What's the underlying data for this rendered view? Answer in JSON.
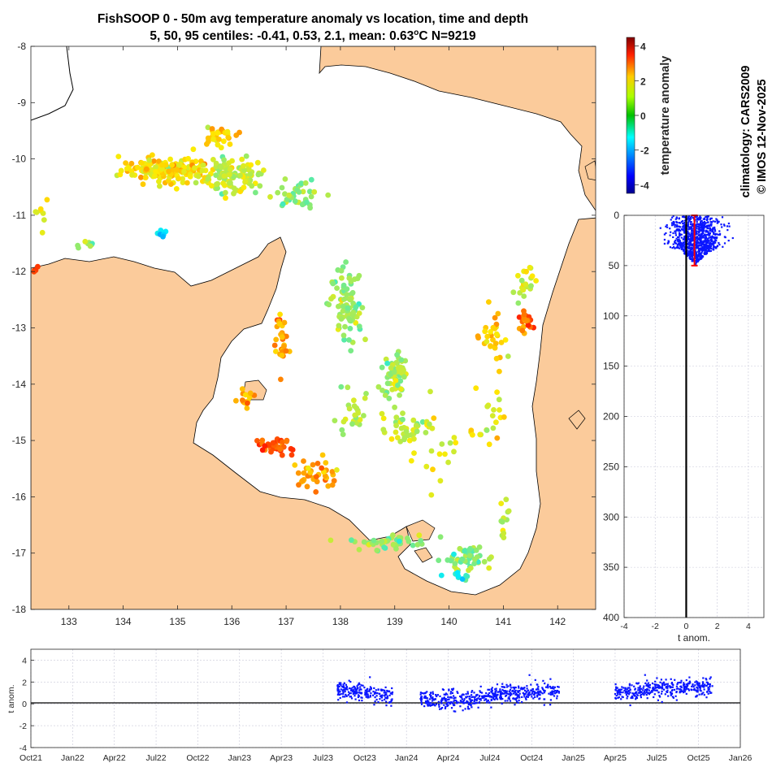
{
  "title_line1": "FishSOOP 0 - 50m avg temperature anomaly vs location, time and depth",
  "title_line2_prefix": "5, 50, 95 centiles: -0.41, 0.53, 2.1, mean: 0.63",
  "title_line2_sup": "o",
  "title_line2_suffix": "C N=9219",
  "side_text": {
    "climatology": "climatology: CARS2009",
    "copyright": "© IMOS 12-Nov-2025"
  },
  "colors": {
    "land": "#fbcb9b",
    "points_blue": "#0a16ff",
    "median_bar": "#ff0000",
    "coast": "#000000"
  },
  "chart_data": [
    {
      "type": "scatter",
      "name": "map",
      "xlim": [
        132.3,
        142.7
      ],
      "ylim": [
        -18,
        -8
      ],
      "x_ticks": [
        "133",
        "134",
        "135",
        "136",
        "137",
        "138",
        "139",
        "140",
        "141",
        "142"
      ],
      "x_tick_values": [
        133,
        134,
        135,
        136,
        137,
        138,
        139,
        140,
        141,
        142
      ],
      "y_ticks": [
        "-8",
        "-9",
        "-10",
        "-11",
        "-12",
        "-13",
        "-14",
        "-15",
        "-16",
        "-17",
        "-18"
      ],
      "y_tick_values": [
        -8,
        -9,
        -10,
        -11,
        -12,
        -13,
        -14,
        -15,
        -16,
        -17,
        -18
      ],
      "colorbar": {
        "label": "temperature anomaly",
        "range": [
          -4.5,
          4.5
        ],
        "ticks": [
          "-4",
          "-2",
          "0",
          "2",
          "4"
        ],
        "tick_values": [
          -4,
          -2,
          0,
          2,
          4
        ]
      },
      "clusters": [
        {
          "lon": 134.8,
          "lat": -10.2,
          "anom": 1.2,
          "n": 160,
          "slon": 0.7,
          "slat": 0.18
        },
        {
          "lon": 136.0,
          "lat": -10.3,
          "anom": 0.6,
          "n": 110,
          "slon": 0.5,
          "slat": 0.25
        },
        {
          "lon": 135.7,
          "lat": -9.6,
          "anom": 1.4,
          "n": 30,
          "slon": 0.3,
          "slat": 0.15
        },
        {
          "lon": 137.2,
          "lat": -10.6,
          "anom": 0.2,
          "n": 40,
          "slon": 0.4,
          "slat": 0.2
        },
        {
          "lon": 138.1,
          "lat": -12.6,
          "anom": 0.2,
          "n": 90,
          "slon": 0.25,
          "slat": 0.6
        },
        {
          "lon": 139.0,
          "lat": -13.8,
          "anom": 0.3,
          "n": 70,
          "slon": 0.2,
          "slat": 0.35
        },
        {
          "lon": 139.2,
          "lat": -14.8,
          "anom": 0.4,
          "n": 40,
          "slon": 0.35,
          "slat": 0.2
        },
        {
          "lon": 136.8,
          "lat": -15.1,
          "anom": 2.6,
          "n": 40,
          "slon": 0.25,
          "slat": 0.12
        },
        {
          "lon": 137.5,
          "lat": -15.6,
          "anom": 1.8,
          "n": 40,
          "slon": 0.35,
          "slat": 0.25
        },
        {
          "lon": 138.9,
          "lat": -16.8,
          "anom": 0.1,
          "n": 45,
          "slon": 0.6,
          "slat": 0.12
        },
        {
          "lon": 140.4,
          "lat": -17.1,
          "anom": 0.1,
          "n": 50,
          "slon": 0.35,
          "slat": 0.2
        },
        {
          "lon": 140.2,
          "lat": -17.4,
          "anom": -0.8,
          "n": 8,
          "slon": 0.15,
          "slat": 0.05
        },
        {
          "lon": 141.4,
          "lat": -12.9,
          "anom": 2.4,
          "n": 25,
          "slon": 0.1,
          "slat": 0.15
        },
        {
          "lon": 140.8,
          "lat": -13.2,
          "anom": 1.5,
          "n": 30,
          "slon": 0.2,
          "slat": 0.4
        },
        {
          "lon": 141.4,
          "lat": -12.2,
          "anom": 0.6,
          "n": 20,
          "slon": 0.15,
          "slat": 0.3
        },
        {
          "lon": 136.9,
          "lat": -13.2,
          "anom": 1.8,
          "n": 30,
          "slon": 0.1,
          "slat": 0.5
        },
        {
          "lon": 136.3,
          "lat": -14.3,
          "anom": 1.6,
          "n": 15,
          "slon": 0.15,
          "slat": 0.15
        },
        {
          "lon": 133.4,
          "lat": -11.5,
          "anom": 0.4,
          "n": 8,
          "slon": 0.15,
          "slat": 0.1
        },
        {
          "lon": 132.5,
          "lat": -11.0,
          "anom": 0.9,
          "n": 8,
          "slon": 0.1,
          "slat": 0.2
        },
        {
          "lon": 132.4,
          "lat": -12.0,
          "anom": 2.5,
          "n": 4,
          "slon": 0.05,
          "slat": 0.05
        },
        {
          "lon": 139.8,
          "lat": -15.2,
          "anom": 0.8,
          "n": 20,
          "slon": 0.6,
          "slat": 0.6
        },
        {
          "lon": 138.3,
          "lat": -14.6,
          "anom": 0.5,
          "n": 25,
          "slon": 0.3,
          "slat": 0.4
        },
        {
          "lon": 140.7,
          "lat": -14.6,
          "anom": 0.9,
          "n": 20,
          "slon": 0.2,
          "slat": 0.4
        },
        {
          "lon": 141.0,
          "lat": -16.4,
          "anom": 0.7,
          "n": 12,
          "slon": 0.1,
          "slat": 0.4
        },
        {
          "lon": 134.7,
          "lat": -11.3,
          "anom": -1.2,
          "n": 6,
          "slon": 0.1,
          "slat": 0.05
        }
      ]
    },
    {
      "type": "scatter",
      "name": "depth-profile",
      "xlabel": "t anom.",
      "xlim": [
        -4,
        5
      ],
      "ylim": [
        0,
        400
      ],
      "x_ticks": [
        "-4",
        "-2",
        "0",
        "2",
        "4"
      ],
      "x_tick_values": [
        -4,
        -2,
        0,
        2,
        4
      ],
      "y_ticks": [
        "0",
        "50",
        "100",
        "150",
        "200",
        "250",
        "300",
        "350",
        "400"
      ],
      "y_tick_values": [
        0,
        50,
        100,
        150,
        200,
        250,
        300,
        350,
        400
      ],
      "depth_range": [
        0,
        50
      ],
      "anom_range": [
        -1.8,
        3.0
      ],
      "median_errorbar": {
        "x": 0.53,
        "y0": 0,
        "y1": 50
      }
    },
    {
      "type": "scatter",
      "name": "time-series",
      "ylabel": "t anom.",
      "ylim": [
        -4,
        5
      ],
      "y_ticks": [
        "-4",
        "-2",
        "0",
        "2",
        "4"
      ],
      "y_tick_values": [
        -4,
        -2,
        0,
        2,
        4
      ],
      "x_ticks": [
        "Oct21",
        "Jan22",
        "Apr22",
        "Jul22",
        "Oct22",
        "Jan23",
        "Apr23",
        "Jul23",
        "Oct23",
        "Jan24",
        "Apr24",
        "Jul24",
        "Oct24",
        "Jan25",
        "Apr25",
        "Jul25",
        "Oct25",
        "Jan26"
      ],
      "x_range_labels": [
        "Oct21",
        "Jan26"
      ],
      "segments": [
        {
          "start": "Aug23",
          "end": "Dec23",
          "anom_start": 1.3,
          "anom_end": 0.7
        },
        {
          "start": "Feb24",
          "end": "Jun24",
          "anom_start": 0.4,
          "anom_end": 0.3
        },
        {
          "start": "Jun24",
          "end": "Dec24",
          "anom_start": 0.6,
          "anom_end": 1.3
        },
        {
          "start": "Apr25",
          "end": "Nov25",
          "anom_start": 1.1,
          "anom_end": 1.6
        }
      ]
    }
  ]
}
